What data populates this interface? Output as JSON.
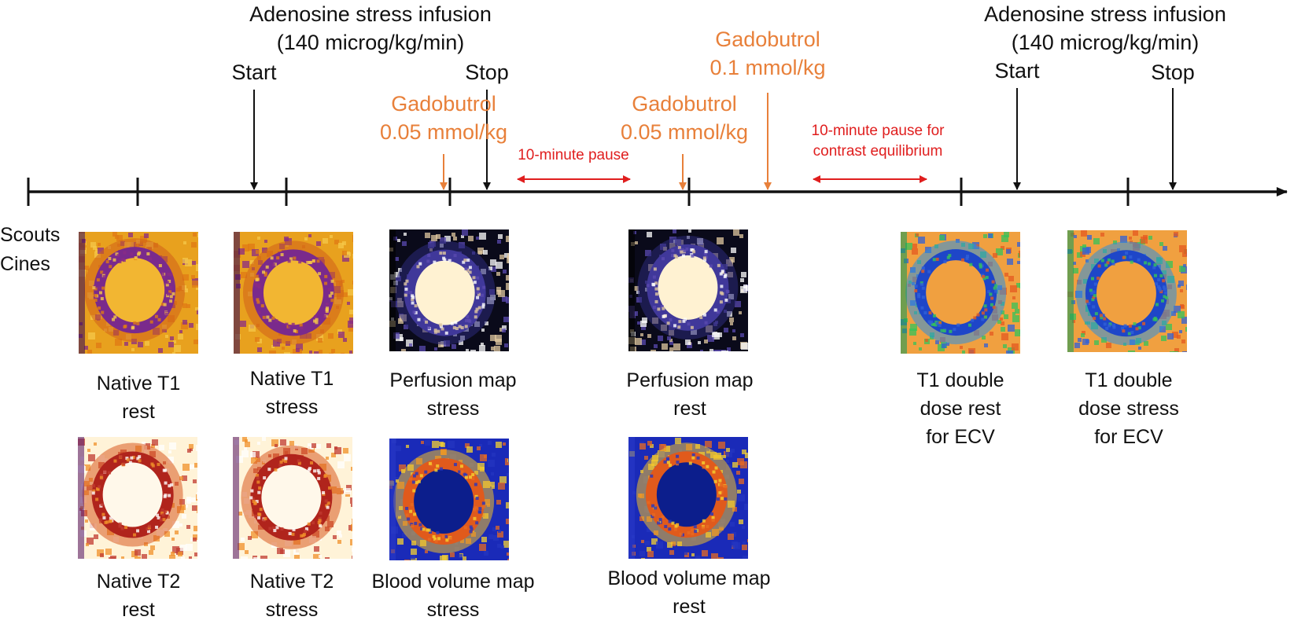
{
  "colors": {
    "black": "#111111",
    "orange": "#E8803A",
    "red": "#E01E1E"
  },
  "left_labels": [
    "Scouts",
    "Cines"
  ],
  "annotations": {
    "adenosine1": [
      "Adenosine stress infusion",
      "(140 microg/kg/min)"
    ],
    "start1": "Start",
    "stop1": "Stop",
    "gado1": [
      "Gadobutrol",
      "0.05 mmol/kg"
    ],
    "pause1": "10-minute pause",
    "gado2": [
      "Gadobutrol",
      "0.05 mmol/kg"
    ],
    "gado3": [
      "Gadobutrol",
      "0.1 mmol/kg"
    ],
    "pause2": [
      "10-minute pause for",
      "contrast equilibrium"
    ],
    "adenosine2": [
      "Adenosine stress infusion",
      "(140 microg/kg/min)"
    ],
    "start2": "Start",
    "stop2": "Stop"
  },
  "images": [
    {
      "id": "native-t1-rest",
      "caption": [
        "Native T1",
        "rest"
      ],
      "colormap": "t1"
    },
    {
      "id": "native-t1-stress",
      "caption": [
        "Native T1",
        "stress"
      ],
      "colormap": "t1"
    },
    {
      "id": "perfusion-map-stress",
      "caption": [
        "Perfusion map",
        "stress"
      ],
      "colormap": "perf"
    },
    {
      "id": "perfusion-map-rest",
      "caption": [
        "Perfusion map",
        "rest"
      ],
      "colormap": "perf"
    },
    {
      "id": "t1-double-dose-rest",
      "caption": [
        "T1 double",
        "dose rest",
        "for ECV"
      ],
      "colormap": "ecv"
    },
    {
      "id": "t1-double-dose-stress",
      "caption": [
        "T1 double",
        "dose stress",
        "for ECV"
      ],
      "colormap": "ecv"
    },
    {
      "id": "native-t2-rest",
      "caption": [
        "Native T2",
        "rest"
      ],
      "colormap": "t2"
    },
    {
      "id": "native-t2-stress",
      "caption": [
        "Native T2",
        "stress"
      ],
      "colormap": "t2"
    },
    {
      "id": "blood-volume-map-stress",
      "caption": [
        "Blood volume map",
        "stress"
      ],
      "colormap": "bv"
    },
    {
      "id": "blood-volume-map-rest",
      "caption": [
        "Blood volume map",
        "rest"
      ],
      "colormap": "bv"
    }
  ]
}
